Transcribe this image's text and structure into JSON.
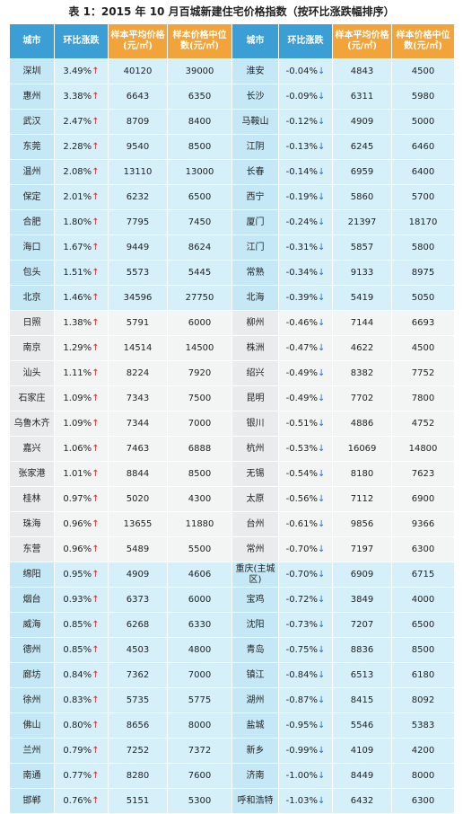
{
  "title": "表 1：2015 年 10 月百城新建住宅价格指数（按环比涨跌幅排序）",
  "table": {
    "header": [
      "城市",
      "环比涨跌",
      "样本平均价格(元/㎡)",
      "样本价格中位数(元/㎡)",
      "城市",
      "环比涨跌",
      "样本平均价格(元/㎡)",
      "样本价格中位数(元/㎡)"
    ],
    "rows": [
      [
        "深圳",
        "3.49%",
        40120,
        39000,
        "淮安",
        "-0.04%",
        4843,
        4500
      ],
      [
        "惠州",
        "3.38%",
        6643,
        6350,
        "长沙",
        "-0.09%",
        6311,
        5980
      ],
      [
        "武汉",
        "2.47%",
        8709,
        8400,
        "马鞍山",
        "-0.12%",
        4909,
        5000
      ],
      [
        "东莞",
        "2.28%",
        9540,
        8500,
        "江阴",
        "-0.13%",
        6245,
        6460
      ],
      [
        "温州",
        "2.08%",
        13110,
        13000,
        "长春",
        "-0.14%",
        6959,
        6400
      ],
      [
        "保定",
        "2.01%",
        6232,
        6500,
        "西宁",
        "-0.19%",
        5860,
        5700
      ],
      [
        "合肥",
        "1.80%",
        7795,
        7450,
        "厦门",
        "-0.24%",
        21397,
        18170
      ],
      [
        "海口",
        "1.67%",
        9449,
        8624,
        "江门",
        "-0.31%",
        5857,
        5800
      ],
      [
        "包头",
        "1.51%",
        5573,
        5445,
        "常熟",
        "-0.34%",
        9133,
        8975
      ],
      [
        "北京",
        "1.46%",
        34596,
        27750,
        "北海",
        "-0.39%",
        5419,
        5050
      ],
      [
        "日照",
        "1.38%",
        5791,
        6000,
        "柳州",
        "-0.46%",
        7144,
        6693
      ],
      [
        "南京",
        "1.29%",
        14514,
        14500,
        "株洲",
        "-0.47%",
        4622,
        4500
      ],
      [
        "汕头",
        "1.11%",
        8224,
        7920,
        "绍兴",
        "-0.49%",
        8382,
        7752
      ],
      [
        "石家庄",
        "1.09%",
        7343,
        7500,
        "昆明",
        "-0.49%",
        7702,
        7800
      ],
      [
        "乌鲁木齐",
        "1.09%",
        7344,
        7000,
        "银川",
        "-0.51%",
        4886,
        4752
      ],
      [
        "嘉兴",
        "1.06%",
        7463,
        6888,
        "杭州",
        "-0.53%",
        16069,
        14800
      ],
      [
        "张家港",
        "1.01%",
        8844,
        8500,
        "无锡",
        "-0.54%",
        8180,
        7623
      ],
      [
        "桂林",
        "0.97%",
        5020,
        4300,
        "太原",
        "-0.56%",
        7112,
        6900
      ],
      [
        "珠海",
        "0.96%",
        13655,
        11880,
        "台州",
        "-0.61%",
        9856,
        9366
      ],
      [
        "东营",
        "0.96%",
        5489,
        5500,
        "常州",
        "-0.70%",
        7197,
        6300
      ],
      [
        "绵阳",
        "0.95%",
        4909,
        4606,
        "重庆(主城区)",
        "-0.70%",
        6909,
        6715
      ],
      [
        "烟台",
        "0.93%",
        6373,
        6000,
        "宝鸡",
        "-0.72%",
        3849,
        4000
      ],
      [
        "威海",
        "0.85%",
        6268,
        6330,
        "沈阳",
        "-0.73%",
        7207,
        6500
      ],
      [
        "德州",
        "0.85%",
        4503,
        4800,
        "青岛",
        "-0.75%",
        8836,
        8500
      ],
      [
        "廊坊",
        "0.84%",
        7362,
        7000,
        "镇江",
        "-0.84%",
        6513,
        6180
      ],
      [
        "徐州",
        "0.83%",
        5735,
        5775,
        "湖州",
        "-0.87%",
        8415,
        8092
      ],
      [
        "佛山",
        "0.80%",
        8656,
        8000,
        "盐城",
        "-0.95%",
        5546,
        5383
      ],
      [
        "兰州",
        "0.79%",
        7252,
        7372,
        "新乡",
        "-0.99%",
        4109,
        4200
      ],
      [
        "南通",
        "0.77%",
        8280,
        7600,
        "济南",
        "-1.00%",
        8449,
        8000
      ],
      [
        "邯郸",
        "0.76%",
        5151,
        5300,
        "呼和浩特",
        "-1.03%",
        6432,
        6300
      ]
    ]
  }
}
